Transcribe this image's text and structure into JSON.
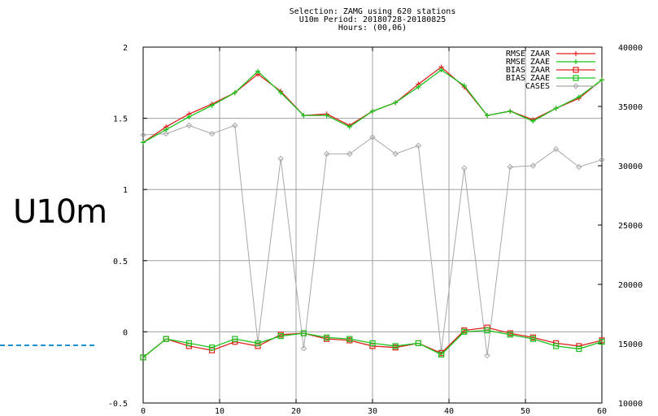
{
  "chart_data": {
    "type": "line",
    "title_lines": [
      "Selection: ZAMG using   620 stations",
      "U10m   Period: 20180728-20180825",
      "Hours: (00,06)"
    ],
    "x": [
      0,
      3,
      6,
      9,
      12,
      15,
      18,
      21,
      24,
      27,
      30,
      33,
      36,
      39,
      42,
      45,
      48,
      51,
      54,
      57,
      60
    ],
    "xlim": [
      0,
      60
    ],
    "xticks": [
      0,
      10,
      20,
      30,
      40,
      50,
      60
    ],
    "ylim": [
      -0.5,
      2
    ],
    "yticks": [
      -0.5,
      0,
      0.5,
      1,
      1.5,
      2
    ],
    "y2lim": [
      10000,
      40000
    ],
    "y2ticks": [
      10000,
      15000,
      20000,
      25000,
      30000,
      35000,
      40000
    ],
    "grid": true,
    "legend_position": "top-right",
    "series": [
      {
        "name": "RMSE ZAAR",
        "axis": "left",
        "color": "#e0201c",
        "marker": "plus",
        "values": [
          1.33,
          1.44,
          1.53,
          1.6,
          1.68,
          1.81,
          1.69,
          1.52,
          1.53,
          1.45,
          1.55,
          1.61,
          1.74,
          1.86,
          1.72,
          1.52,
          1.55,
          1.49,
          1.57,
          1.64,
          1.77
        ]
      },
      {
        "name": "RMSE ZAAE",
        "axis": "left",
        "color": "#1cc21c",
        "marker": "plus",
        "values": [
          1.33,
          1.42,
          1.51,
          1.59,
          1.68,
          1.83,
          1.68,
          1.52,
          1.52,
          1.44,
          1.55,
          1.61,
          1.72,
          1.84,
          1.73,
          1.52,
          1.55,
          1.48,
          1.57,
          1.65,
          1.77
        ]
      },
      {
        "name": "BIAS ZAAR",
        "axis": "left",
        "color": "#e0201c",
        "marker": "square",
        "values": [
          -0.18,
          -0.05,
          -0.1,
          -0.13,
          -0.07,
          -0.1,
          -0.02,
          -0.01,
          -0.05,
          -0.06,
          -0.1,
          -0.11,
          -0.08,
          -0.15,
          0.01,
          0.03,
          -0.01,
          -0.04,
          -0.08,
          -0.1,
          -0.06
        ]
      },
      {
        "name": "BIAS ZAAE",
        "axis": "left",
        "color": "#1cc21c",
        "marker": "square",
        "values": [
          -0.18,
          -0.05,
          -0.08,
          -0.11,
          -0.05,
          -0.08,
          -0.03,
          -0.01,
          -0.04,
          -0.05,
          -0.08,
          -0.1,
          -0.08,
          -0.16,
          0,
          0.01,
          -0.02,
          -0.05,
          -0.1,
          -0.12,
          -0.07
        ]
      },
      {
        "name": "CASES",
        "axis": "right",
        "color": "#a8a8a8",
        "marker": "diamond",
        "values": [
          32600,
          32700,
          33400,
          32700,
          33400,
          15100,
          30600,
          14600,
          31000,
          31000,
          32400,
          31000,
          31700,
          14400,
          29800,
          14000,
          29900,
          30000,
          31400,
          29900,
          30500
        ]
      }
    ]
  },
  "side_label": "U10m"
}
